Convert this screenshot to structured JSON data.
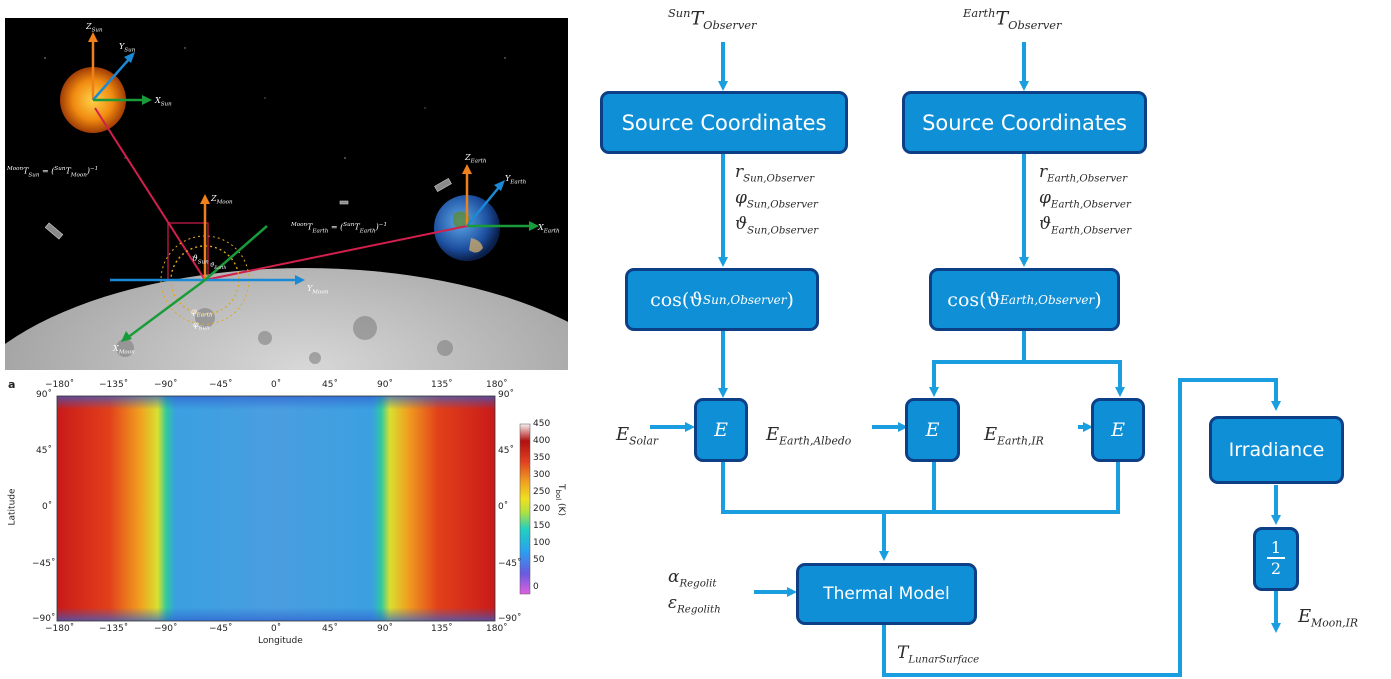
{
  "space_scene": {
    "sun_axes": {
      "z": "Z",
      "z_sub": "Sun",
      "y": "Y",
      "y_sub": "Sun",
      "x": "X",
      "x_sub": "Sun"
    },
    "moon_axes": {
      "z": "Z",
      "z_sub": "Moon",
      "y": "Y",
      "y_sub": "Moon",
      "x": "X",
      "x_sub": "Moon"
    },
    "earth_axes": {
      "z": "Z",
      "z_sub": "Earth",
      "y": "Y",
      "y_sub": "Earth",
      "x": "X",
      "x_sub": "Earth"
    },
    "transform_sun": {
      "pre": "Moon",
      "main": "T",
      "sub": "Sun",
      "eq": " = (",
      "pre2": "Sun",
      "main2": "T",
      "sub2": "Moon",
      "close": ")",
      "exp": "−1"
    },
    "transform_earth": {
      "pre": "Moon",
      "main": "T",
      "sub": "Earth",
      "eq": " = (",
      "pre2": "Sun",
      "main2": "T",
      "sub2": "Earth",
      "close": ")",
      "exp": "−1"
    },
    "angles": {
      "theta_sun": "ϑ",
      "theta_sun_sub": "Sun",
      "theta_earth": "ϑ",
      "theta_earth_sub": "Earth",
      "phi_earth": "φ",
      "phi_earth_sub": "Earth",
      "phi_sun": "φ",
      "phi_sun_sub": "Sun"
    }
  },
  "thermal_map": {
    "panel_label": "a",
    "x_ticks": [
      "−180˚",
      "−135˚",
      "−90˚",
      "−45˚",
      "0˚",
      "45˚",
      "90˚",
      "135˚",
      "180˚"
    ],
    "y_ticks": [
      "90˚",
      "45˚",
      "0˚",
      "−45˚",
      "−90˚"
    ],
    "xlabel": "Longitude",
    "ylabel": "Latitude",
    "colorbar_ticks": [
      "450",
      "400",
      "350",
      "300",
      "250",
      "200",
      "150",
      "100",
      "50",
      "0"
    ],
    "colorbar_label": "T",
    "colorbar_label_sub": "bol",
    "colorbar_unit": " (K)"
  },
  "flow": {
    "input_sun": {
      "pre": "Sun",
      "main": "T",
      "sub": "Observer"
    },
    "input_earth": {
      "pre": "Earth",
      "main": "T",
      "sub": "Observer"
    },
    "box_source_sun": "Source Coordinates",
    "box_source_earth": "Source Coordinates",
    "sun_params": [
      {
        "main": "r",
        "sub": "Sun,Observer"
      },
      {
        "main": "φ",
        "sub": "Sun,Observer"
      },
      {
        "main": "ϑ",
        "sub": "Sun,Observer"
      }
    ],
    "earth_params": [
      {
        "main": "r",
        "sub": "Earth,Observer"
      },
      {
        "main": "φ",
        "sub": "Earth,Observer"
      },
      {
        "main": "ϑ",
        "sub": "Earth,Observer"
      }
    ],
    "cos_sun": {
      "pre": "cos(ϑ",
      "sub": "Sun,Observer",
      "post": ")"
    },
    "cos_earth": {
      "pre": "cos(ϑ",
      "sub": "Earth,Observer",
      "post": ")"
    },
    "e_box_label": "E",
    "e_solar": {
      "main": "E",
      "sub": "Solar"
    },
    "e_albedo": {
      "main": "E",
      "sub": "Earth,Albedo"
    },
    "e_ir": {
      "main": "E",
      "sub": "Earth,IR"
    },
    "box_thermal": "Thermal Model",
    "alpha": {
      "main": "α",
      "sub": "Regolit"
    },
    "epsilon": {
      "main": "ε",
      "sub": "Regolith"
    },
    "t_surface": {
      "main": "T",
      "sub": "LunarSurface"
    },
    "box_irradiance": "Irradiance",
    "half": {
      "num": "1",
      "den": "2"
    },
    "e_moon": {
      "main": "E",
      "sub": "Moon,IR"
    }
  },
  "colors": {
    "box_fill": "#0f8fd6",
    "box_border": "#0d3f87",
    "arrow": "#1a9ee0"
  }
}
